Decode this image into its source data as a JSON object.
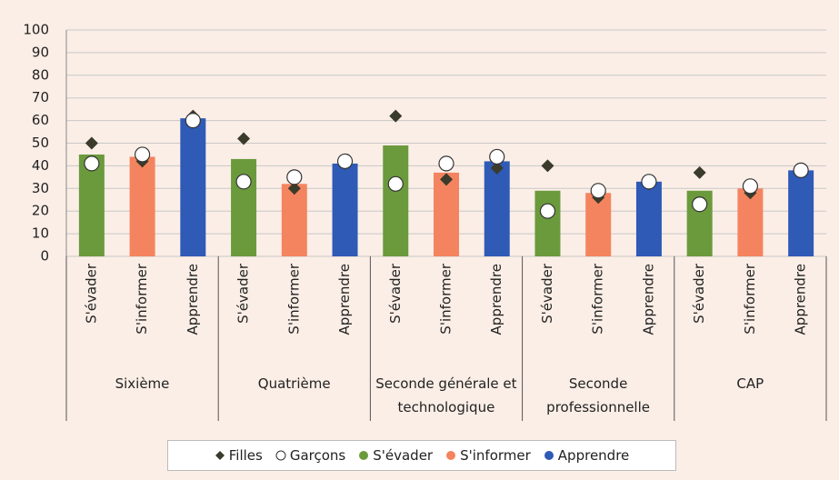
{
  "chart_data": {
    "type": "bar",
    "groups": [
      "Sixième",
      "Quatrième",
      "Seconde générale et technologique",
      "Seconde professionnelle",
      "CAP"
    ],
    "categories": [
      "S'évader",
      "S'informer",
      "Apprendre",
      "S'évader",
      "S'informer",
      "Apprendre",
      "S'évader",
      "S'informer",
      "Apprendre",
      "S'évader",
      "S'informer",
      "Apprendre",
      "S'évader",
      "S'informer",
      "Apprendre"
    ],
    "series": [
      {
        "name": "Filles",
        "marker": "diamond",
        "color": "#3b3b2b",
        "values": [
          50,
          42,
          62,
          52,
          30,
          41,
          62,
          34,
          39,
          40,
          26,
          32,
          37,
          28,
          38
        ]
      },
      {
        "name": "Garçons",
        "marker": "circle",
        "color": "#ffffff",
        "values": [
          41,
          45,
          60,
          33,
          35,
          42,
          32,
          41,
          44,
          20,
          29,
          33,
          23,
          31,
          38
        ]
      },
      {
        "name": "S'évader",
        "marker": "bar",
        "color": "#6b9a3c",
        "values": [
          45,
          null,
          null,
          43,
          null,
          null,
          49,
          null,
          null,
          29,
          null,
          null,
          29,
          null,
          null
        ]
      },
      {
        "name": "S'informer",
        "marker": "bar",
        "color": "#f4845f",
        "values": [
          null,
          44,
          null,
          null,
          32,
          null,
          null,
          37,
          null,
          null,
          28,
          null,
          null,
          30,
          null
        ]
      },
      {
        "name": "Apprendre",
        "marker": "bar",
        "color": "#2f5ab6",
        "values": [
          null,
          null,
          61,
          null,
          null,
          41,
          null,
          null,
          42,
          null,
          null,
          33,
          null,
          null,
          38
        ]
      }
    ],
    "ylim": [
      0,
      100
    ],
    "yticks": [
      0,
      10,
      20,
      30,
      40,
      50,
      60,
      70,
      80,
      90,
      100
    ],
    "grid": true,
    "legend": "bottom"
  }
}
